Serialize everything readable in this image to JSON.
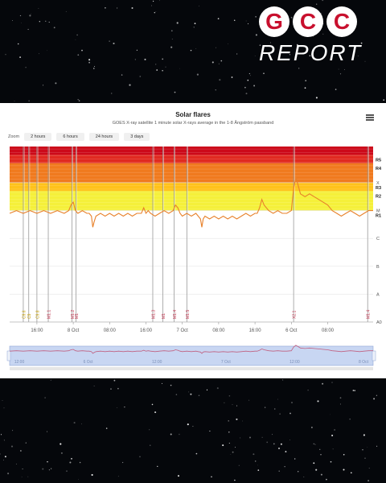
{
  "brand": {
    "logo_letters": [
      "G",
      "C",
      "C"
    ],
    "logo_word": "REPORT"
  },
  "chart": {
    "title": "Solar flares",
    "subtitle": "GOES X-ray satellite 1 minute solar X-rays average in the 1-8 Ångström passband",
    "zoom_label": "Zoom",
    "zoom_buttons": [
      "2 hours",
      "6 hours",
      "24 hours",
      "3 days"
    ],
    "menu_icon": "hamburger-menu-icon"
  },
  "chart_data": {
    "type": "line",
    "title": "Solar flares",
    "subtitle": "GOES X-ray satellite 1 minute solar X-rays average in the 1-8 Ångström passband",
    "x_unit": "hours",
    "x_range": [
      0,
      80
    ],
    "x_ticks": [
      {
        "x": 6,
        "label": "16:00"
      },
      {
        "x": 14,
        "label": "8 Oct"
      },
      {
        "x": 22,
        "label": "08:00"
      },
      {
        "x": 30,
        "label": "16:00"
      },
      {
        "x": 38,
        "label": "7 Oct"
      },
      {
        "x": 46,
        "label": "08:00"
      },
      {
        "x": 54,
        "label": "16:00"
      },
      {
        "x": 62,
        "label": "6 Oct"
      },
      {
        "x": 70,
        "label": "08:00"
      }
    ],
    "y_scale": "log",
    "y_range": [
      -9,
      -2.7
    ],
    "flux_classes": [
      {
        "label": "X",
        "y": -4
      },
      {
        "label": "M",
        "y": -5
      },
      {
        "label": "C",
        "y": -6
      },
      {
        "label": "B",
        "y": -7
      },
      {
        "label": "A",
        "y": -8
      },
      {
        "label": "A0",
        "y": -9
      }
    ],
    "radio_blackout_scale": [
      {
        "label": "R5",
        "y": -3
      },
      {
        "label": "R4",
        "y": -3.3
      },
      {
        "label": "R3",
        "y": -4
      },
      {
        "label": "R2",
        "y": -4.3
      },
      {
        "label": "R1",
        "y": -5
      }
    ],
    "severity_colors": {
      "R5": "#cc0a1a",
      "R4": "#e02a20",
      "R3": "#f07a1e",
      "R2": "#ffc21a",
      "R1": "#f5f03a"
    },
    "series": [
      {
        "color": "#e8812a",
        "x": [
          0,
          1.5,
          3,
          4.5,
          6,
          7.5,
          9,
          10.5,
          12,
          13,
          13.5,
          14,
          14.5,
          15,
          16,
          17,
          17.5,
          18,
          18.3,
          18.6,
          19,
          20,
          21,
          22,
          23,
          24,
          25,
          26,
          27,
          28,
          29,
          29.5,
          30,
          30.5,
          31,
          32,
          33,
          34,
          35,
          36,
          36.5,
          37,
          37.5,
          38,
          39,
          40,
          41,
          41.5,
          42,
          42.3,
          42.6,
          43,
          44,
          45,
          46,
          47,
          48,
          49,
          50,
          51,
          52,
          53,
          54,
          54.5,
          55,
          55.5,
          56,
          57,
          58,
          59,
          60,
          61,
          62,
          62.5,
          63,
          63.5,
          64,
          65,
          66,
          67,
          68,
          69,
          70,
          71,
          72,
          73,
          74,
          75,
          76,
          77,
          78,
          79,
          80
        ],
        "y": [
          -5.1,
          -5.0,
          -5.1,
          -5.0,
          -5.1,
          -5.0,
          -5.1,
          -5.0,
          -5.1,
          -5.0,
          -4.8,
          -4.7,
          -5.0,
          -5.1,
          -5.0,
          -5.1,
          -5.1,
          -5.2,
          -5.6,
          -5.4,
          -5.2,
          -5.1,
          -5.2,
          -5.1,
          -5.2,
          -5.1,
          -5.2,
          -5.1,
          -5.2,
          -5.1,
          -5.1,
          -4.9,
          -5.1,
          -5.0,
          -5.1,
          -5.2,
          -5.1,
          -5.0,
          -5.1,
          -5.0,
          -4.8,
          -4.9,
          -5.1,
          -5.2,
          -5.1,
          -5.2,
          -5.1,
          -5.2,
          -5.3,
          -5.6,
          -5.3,
          -5.2,
          -5.3,
          -5.2,
          -5.3,
          -5.2,
          -5.3,
          -5.2,
          -5.3,
          -5.2,
          -5.1,
          -5.2,
          -5.1,
          -5.1,
          -4.9,
          -4.6,
          -4.8,
          -5.0,
          -5.1,
          -5.0,
          -5.1,
          -5.1,
          -5.0,
          -4.2,
          -3.8,
          -4.1,
          -4.4,
          -4.5,
          -4.4,
          -4.5,
          -4.6,
          -4.7,
          -4.8,
          -5.0,
          -5.1,
          -5.2,
          -5.1,
          -5.0,
          -5.1,
          -5.2,
          -5.1,
          -5.0,
          -5.0
        ]
      }
    ],
    "flare_markers": [
      {
        "x": 3.0,
        "label": "C9.6",
        "color": "#c8a000"
      },
      {
        "x": 4.2,
        "label": "C9",
        "color": "#c8a000"
      },
      {
        "x": 6.0,
        "label": "C9.8",
        "color": "#c8a000"
      },
      {
        "x": 8.5,
        "label": "M1.1",
        "color": "#c0304a"
      },
      {
        "x": 13.7,
        "label": "M1.2",
        "color": "#c0304a"
      },
      {
        "x": 14.6,
        "label": "M1",
        "color": "#c0304a"
      },
      {
        "x": 31.5,
        "label": "M1.3",
        "color": "#c0304a"
      },
      {
        "x": 33.7,
        "label": "M1",
        "color": "#c0304a"
      },
      {
        "x": 36.2,
        "label": "M1.4",
        "color": "#c0304a"
      },
      {
        "x": 39.0,
        "label": "M1.5",
        "color": "#c0304a"
      },
      {
        "x": 62.5,
        "label": "X2.1",
        "color": "#c0304a"
      },
      {
        "x": 78.8,
        "label": "M1.4",
        "color": "#c0304a"
      }
    ],
    "navigator": {
      "tick_labels": [
        "12:00",
        "6 Oct",
        "12:00",
        "7 Oct",
        "12:00",
        "8 Oct"
      ],
      "color": "#c06080"
    }
  }
}
